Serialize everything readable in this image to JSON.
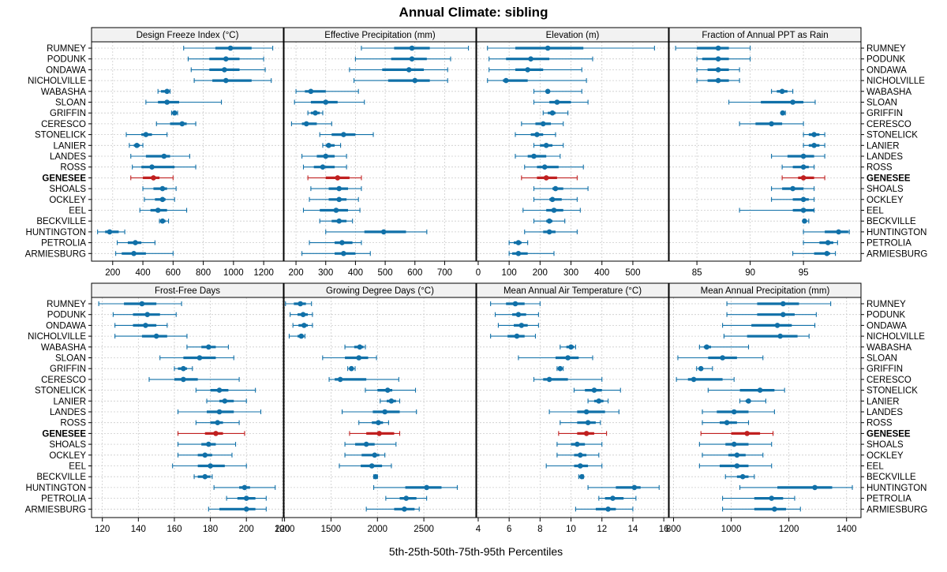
{
  "title": "Annual Climate: sibling",
  "xlabel": "5th-25th-50th-75th-95th Percentiles",
  "colors": {
    "normal": "#1070a8",
    "highlight": "#c02020",
    "strip": "#f2f2f2",
    "grid": "#cccccc"
  },
  "sites": [
    "RUMNEY",
    "PODUNK",
    "ONDAWA",
    "NICHOLVILLE",
    "WABASHA",
    "SLOAN",
    "GRIFFIN",
    "CERESCO",
    "STONELICK",
    "LANIER",
    "LANDES",
    "ROSS",
    "GENESEE",
    "SHOALS",
    "OCKLEY",
    "EEL",
    "BECKVILLE",
    "HUNTINGTON",
    "PETROLIA",
    "ARMIESBURG"
  ],
  "highlight_site": "GENESEE",
  "chart_data": [
    {
      "type": "dotplot",
      "title": "Design Freeze Index (°C)",
      "xlim": [
        60,
        1330
      ],
      "ticks": [
        200,
        400,
        600,
        800,
        1000,
        1200
      ],
      "stats": [
        [
          670,
          880,
          980,
          1120,
          1260
        ],
        [
          700,
          840,
          950,
          1040,
          1200
        ],
        [
          720,
          840,
          940,
          1040,
          1210
        ],
        [
          740,
          860,
          950,
          1120,
          1250
        ],
        [
          500,
          520,
          560,
          570,
          580
        ],
        [
          420,
          500,
          560,
          640,
          920
        ],
        [
          590,
          600,
          610,
          620,
          630
        ],
        [
          490,
          580,
          660,
          690,
          750
        ],
        [
          290,
          390,
          420,
          460,
          560
        ],
        [
          310,
          340,
          360,
          380,
          400
        ],
        [
          320,
          420,
          540,
          580,
          710
        ],
        [
          330,
          390,
          460,
          610,
          750
        ],
        [
          320,
          400,
          470,
          510,
          600
        ],
        [
          400,
          470,
          530,
          560,
          620
        ],
        [
          410,
          480,
          530,
          550,
          610
        ],
        [
          380,
          450,
          500,
          560,
          690
        ],
        [
          510,
          520,
          530,
          550,
          570
        ],
        [
          100,
          150,
          180,
          240,
          280
        ],
        [
          230,
          300,
          350,
          390,
          480
        ],
        [
          220,
          260,
          340,
          420,
          600
        ]
      ]
    },
    {
      "type": "dotplot",
      "title": "Effective Precipitation (mm)",
      "xlim": [
        160,
        805
      ],
      "ticks": [
        200,
        300,
        400,
        500,
        600,
        700
      ],
      "stats": [
        [
          420,
          530,
          590,
          650,
          780
        ],
        [
          400,
          520,
          590,
          640,
          720
        ],
        [
          380,
          490,
          580,
          630,
          710
        ],
        [
          395,
          510,
          600,
          650,
          710
        ],
        [
          200,
          230,
          250,
          300,
          410
        ],
        [
          195,
          250,
          300,
          340,
          430
        ],
        [
          240,
          250,
          265,
          280,
          290
        ],
        [
          185,
          220,
          235,
          270,
          320
        ],
        [
          280,
          320,
          360,
          400,
          460
        ],
        [
          290,
          300,
          310,
          330,
          350
        ],
        [
          220,
          270,
          300,
          330,
          370
        ],
        [
          225,
          260,
          290,
          330,
          370
        ],
        [
          240,
          300,
          340,
          380,
          420
        ],
        [
          250,
          310,
          345,
          375,
          420
        ],
        [
          245,
          310,
          345,
          370,
          410
        ],
        [
          225,
          280,
          335,
          375,
          415
        ],
        [
          280,
          320,
          345,
          370,
          390
        ],
        [
          300,
          430,
          495,
          570,
          640
        ],
        [
          245,
          330,
          355,
          390,
          420
        ],
        [
          220,
          330,
          360,
          400,
          450
        ]
      ]
    },
    {
      "type": "dotplot",
      "title": "Elevation (m)",
      "xlim": [
        -5,
        615
      ],
      "ticks": [
        0,
        100,
        200,
        300,
        400,
        500
      ],
      "stats": [
        [
          30,
          120,
          225,
          340,
          570
        ],
        [
          35,
          90,
          170,
          230,
          370
        ],
        [
          35,
          120,
          160,
          210,
          335
        ],
        [
          30,
          80,
          90,
          160,
          350
        ],
        [
          180,
          220,
          225,
          230,
          335
        ],
        [
          180,
          230,
          255,
          300,
          355
        ],
        [
          210,
          225,
          240,
          250,
          290
        ],
        [
          140,
          185,
          210,
          235,
          275
        ],
        [
          120,
          170,
          190,
          210,
          250
        ],
        [
          180,
          200,
          220,
          240,
          275
        ],
        [
          120,
          160,
          180,
          220,
          265
        ],
        [
          150,
          190,
          215,
          260,
          340
        ],
        [
          140,
          190,
          220,
          255,
          320
        ],
        [
          180,
          240,
          250,
          275,
          355
        ],
        [
          180,
          230,
          240,
          270,
          320
        ],
        [
          145,
          220,
          245,
          275,
          330
        ],
        [
          180,
          220,
          230,
          240,
          280
        ],
        [
          150,
          210,
          230,
          250,
          320
        ],
        [
          100,
          115,
          130,
          140,
          160
        ],
        [
          100,
          110,
          130,
          160,
          245
        ]
      ]
    },
    {
      "type": "dotplot",
      "title": "Fraction of Annual PPT as Rain",
      "xlim": [
        82.4,
        100.4
      ],
      "ticks": [
        85,
        90,
        95
      ],
      "stats": [
        [
          83,
          85,
          87,
          88,
          90
        ],
        [
          85,
          85.5,
          87,
          88,
          90
        ],
        [
          85,
          86,
          87,
          88,
          89
        ],
        [
          85,
          86,
          87,
          88,
          89
        ],
        [
          92,
          92.5,
          93,
          93.5,
          94
        ],
        [
          88,
          91,
          94,
          95,
          96.1
        ],
        [
          93,
          93,
          93.05,
          93.2,
          93.3
        ],
        [
          89,
          90.5,
          92,
          93,
          95
        ],
        [
          95,
          95.5,
          96,
          96.5,
          97
        ],
        [
          95,
          95.5,
          96,
          96.5,
          97
        ],
        [
          92,
          93.5,
          95,
          96,
          97
        ],
        [
          93,
          94,
          95,
          95.5,
          96
        ],
        [
          93,
          94.5,
          95,
          96,
          97
        ],
        [
          92,
          93,
          94,
          95,
          96
        ],
        [
          92,
          94,
          95,
          95.5,
          96
        ],
        [
          89,
          94,
          95,
          96,
          96
        ],
        [
          95,
          95,
          95.1,
          95.3,
          95.5
        ],
        [
          95,
          97,
          98.3,
          99.2,
          99.3
        ],
        [
          95,
          96.5,
          97.3,
          97.8,
          98.2
        ],
        [
          94,
          96,
          97.2,
          97.5,
          98
        ]
      ]
    },
    {
      "type": "dotplot",
      "title": "Frost-Free Days",
      "xlim": [
        114,
        220.5
      ],
      "ticks": [
        120,
        140,
        160,
        180,
        200,
        220
      ],
      "stats": [
        [
          118,
          132,
          142,
          150,
          164
        ],
        [
          126,
          137,
          145,
          152,
          161
        ],
        [
          127,
          137,
          144,
          150,
          156
        ],
        [
          127,
          142,
          150,
          156,
          167
        ],
        [
          167,
          175,
          179,
          183,
          190
        ],
        [
          152,
          165,
          174,
          183,
          193
        ],
        [
          160,
          162,
          165,
          167,
          170
        ],
        [
          146,
          160,
          165,
          173,
          196
        ],
        [
          172,
          180,
          185,
          190,
          205
        ],
        [
          178,
          185,
          188,
          193,
          200
        ],
        [
          162,
          178,
          185,
          193,
          208
        ],
        [
          172,
          180,
          184,
          187,
          196
        ],
        [
          162,
          177,
          183,
          187,
          199
        ],
        [
          162,
          175,
          179,
          183,
          194
        ],
        [
          162,
          173,
          177,
          181,
          192
        ],
        [
          159,
          173,
          180,
          188,
          200
        ],
        [
          171,
          173,
          177,
          180,
          181
        ],
        [
          182,
          196,
          199,
          202,
          216
        ],
        [
          189,
          195,
          200,
          205,
          211
        ],
        [
          179,
          185,
          200,
          205,
          211
        ]
      ]
    },
    {
      "type": "dotplot",
      "title": "Growing Degree Days (°C)",
      "xlim": [
        995,
        3060
      ],
      "ticks": [
        1000,
        1500,
        2000,
        2500
      ],
      "stats": [
        [
          1010,
          1100,
          1170,
          1230,
          1290
        ],
        [
          1060,
          1140,
          1200,
          1250,
          1300
        ],
        [
          1090,
          1150,
          1210,
          1250,
          1300
        ],
        [
          1050,
          1140,
          1180,
          1210,
          1220
        ],
        [
          1650,
          1750,
          1810,
          1850,
          1870
        ],
        [
          1410,
          1650,
          1800,
          1900,
          1990
        ],
        [
          1680,
          1700,
          1720,
          1740,
          1760
        ],
        [
          1480,
          1540,
          1600,
          1880,
          2230
        ],
        [
          1870,
          2000,
          2110,
          2160,
          2410
        ],
        [
          2030,
          2100,
          2150,
          2200,
          2240
        ],
        [
          1620,
          1950,
          2080,
          2240,
          2420
        ],
        [
          1800,
          1940,
          2010,
          2060,
          2120
        ],
        [
          1700,
          1880,
          2020,
          2180,
          2240
        ],
        [
          1650,
          1760,
          1880,
          1970,
          2200
        ],
        [
          1650,
          1830,
          1970,
          2020,
          2080
        ],
        [
          1590,
          1820,
          1940,
          2050,
          2150
        ],
        [
          1960,
          1970,
          1980,
          1990,
          2000
        ],
        [
          1960,
          2300,
          2530,
          2690,
          2860
        ],
        [
          2090,
          2240,
          2310,
          2420,
          2530
        ],
        [
          1880,
          2180,
          2290,
          2400,
          2450
        ]
      ]
    },
    {
      "type": "dotplot",
      "title": "Mean Annual Air Temperature (°C)",
      "xlim": [
        3.9,
        16.3
      ],
      "ticks": [
        4,
        6,
        8,
        10,
        12,
        14,
        16
      ],
      "stats": [
        [
          4.8,
          5.8,
          6.4,
          7.0,
          8.0
        ],
        [
          5.1,
          6.2,
          6.6,
          7.1,
          7.9
        ],
        [
          5.3,
          6.3,
          6.8,
          7.2,
          7.9
        ],
        [
          4.8,
          5.9,
          6.5,
          7.0,
          7.7
        ],
        [
          9.3,
          9.7,
          10.0,
          10.2,
          10.3
        ],
        [
          6.6,
          9.0,
          9.8,
          10.5,
          11.4
        ],
        [
          9.1,
          9.2,
          9.3,
          9.4,
          9.5
        ],
        [
          7.6,
          8.2,
          8.6,
          9.8,
          12.0
        ],
        [
          10.2,
          10.9,
          11.5,
          12.0,
          13.2
        ],
        [
          11.1,
          11.5,
          11.8,
          12.1,
          12.4
        ],
        [
          8.6,
          10.4,
          11.0,
          12.2,
          13.1
        ],
        [
          9.3,
          10.4,
          11.1,
          11.6,
          11.9
        ],
        [
          9.2,
          10.4,
          11.0,
          11.5,
          12.3
        ],
        [
          9.1,
          10.0,
          10.4,
          10.9,
          12.0
        ],
        [
          9.1,
          10.2,
          10.6,
          11.0,
          11.8
        ],
        [
          8.4,
          10.2,
          10.6,
          11.1,
          12.0
        ],
        [
          10.5,
          10.6,
          10.7,
          10.7,
          10.8
        ],
        [
          11.1,
          12.9,
          14.1,
          14.5,
          15.7
        ],
        [
          11.8,
          12.2,
          12.7,
          13.4,
          14.2
        ],
        [
          10.3,
          11.6,
          12.4,
          12.9,
          14.0
        ]
      ]
    },
    {
      "type": "dotplot",
      "title": "Mean Annual Precipitation (mm)",
      "xlim": [
        785,
        1450
      ],
      "ticks": [
        800,
        1000,
        1200,
        1400
      ],
      "stats": [
        [
          985,
          1090,
          1180,
          1235,
          1345
        ],
        [
          985,
          1090,
          1180,
          1220,
          1295
        ],
        [
          970,
          1070,
          1160,
          1210,
          1290
        ],
        [
          975,
          1055,
          1170,
          1230,
          1270
        ],
        [
          890,
          905,
          915,
          930,
          1060
        ],
        [
          815,
          920,
          970,
          1020,
          1110
        ],
        [
          880,
          890,
          895,
          900,
          935
        ],
        [
          810,
          850,
          870,
          970,
          1010
        ],
        [
          920,
          1030,
          1100,
          1150,
          1185
        ],
        [
          1030,
          1050,
          1060,
          1065,
          1120
        ],
        [
          900,
          950,
          1010,
          1060,
          1150
        ],
        [
          900,
          960,
          985,
          1020,
          1060
        ],
        [
          895,
          1000,
          1055,
          1100,
          1145
        ],
        [
          890,
          980,
          1010,
          1060,
          1140
        ],
        [
          900,
          990,
          1020,
          1050,
          1110
        ],
        [
          890,
          960,
          1020,
          1060,
          1140
        ],
        [
          980,
          1020,
          1040,
          1060,
          1080
        ],
        [
          1030,
          1160,
          1290,
          1350,
          1420
        ],
        [
          970,
          1080,
          1140,
          1180,
          1220
        ],
        [
          970,
          1080,
          1150,
          1190,
          1240
        ]
      ]
    }
  ]
}
